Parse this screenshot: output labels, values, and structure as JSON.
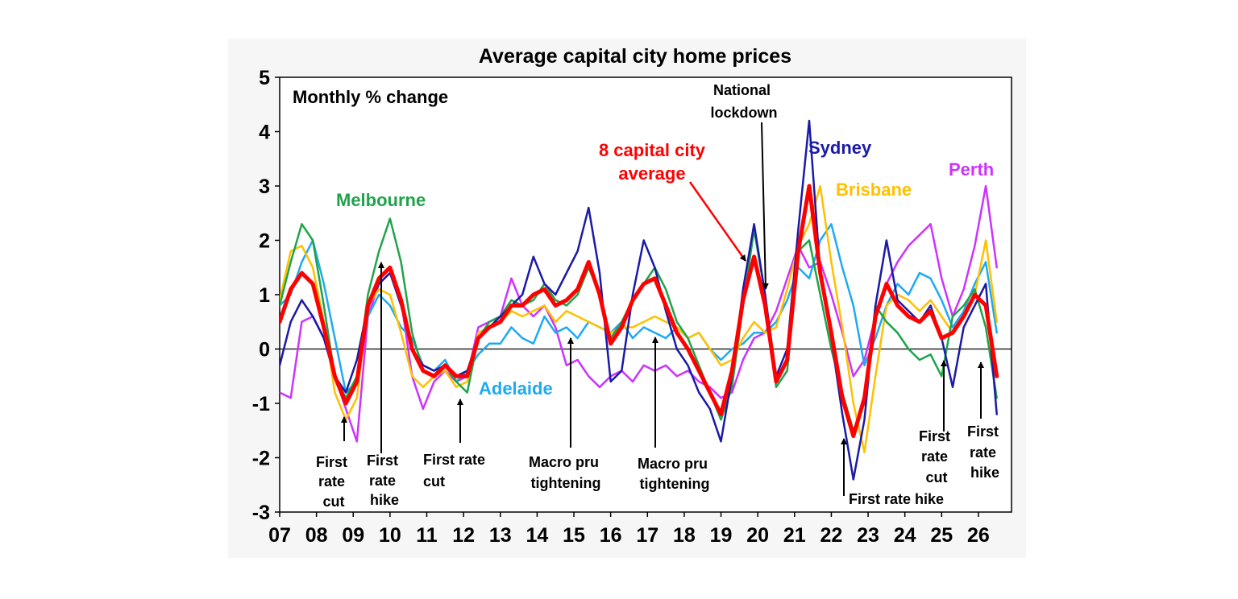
{
  "chart_data": {
    "type": "line",
    "title": "Average capital city home prices",
    "subtitle": "Monthly % change",
    "xlabel": "",
    "ylabel": "",
    "ylim": [
      -3,
      5
    ],
    "xlim": [
      2007.0,
      2026.9
    ],
    "yticks": [
      "5",
      "4",
      "3",
      "2",
      "1",
      "0",
      "-1",
      "-2",
      "-3"
    ],
    "xticks": [
      "07",
      "08",
      "09",
      "10",
      "11",
      "12",
      "13",
      "14",
      "15",
      "16",
      "17",
      "18",
      "19",
      "20",
      "21",
      "22",
      "23",
      "24",
      "25",
      "26"
    ],
    "grid": false,
    "series": [
      {
        "name": "Perth",
        "color": "#cc33ff",
        "width": 2.5,
        "x": [
          2007.0,
          2007.3,
          2007.6,
          2007.9,
          2008.2,
          2008.5,
          2008.8,
          2009.1,
          2009.4,
          2009.7,
          2010.0,
          2010.3,
          2010.6,
          2010.9,
          2011.2,
          2011.5,
          2011.8,
          2012.1,
          2012.4,
          2012.7,
          2013.0,
          2013.3,
          2013.6,
          2013.9,
          2014.2,
          2014.5,
          2014.8,
          2015.1,
          2015.4,
          2015.7,
          2016.0,
          2016.3,
          2016.6,
          2016.9,
          2017.2,
          2017.5,
          2017.8,
          2018.1,
          2018.4,
          2018.7,
          2019.0,
          2019.3,
          2019.6,
          2019.9,
          2020.2,
          2020.5,
          2020.8,
          2021.1,
          2021.4,
          2021.7,
          2022.0,
          2022.3,
          2022.6,
          2022.9,
          2023.2,
          2023.5,
          2023.8,
          2024.1,
          2024.4,
          2024.7,
          2025.0,
          2025.3,
          2025.6,
          2025.9,
          2026.2,
          2026.5
        ],
        "y": [
          -0.8,
          -0.9,
          0.5,
          0.6,
          0.2,
          -0.5,
          -1.1,
          -1.7,
          0.6,
          1.2,
          1.4,
          0.9,
          -0.5,
          -1.1,
          -0.6,
          -0.4,
          -0.6,
          -0.5,
          0.4,
          0.5,
          0.6,
          1.3,
          0.8,
          0.6,
          0.8,
          0.4,
          -0.3,
          -0.2,
          -0.5,
          -0.7,
          -0.5,
          -0.4,
          -0.6,
          -0.3,
          -0.4,
          -0.3,
          -0.5,
          -0.4,
          -0.6,
          -0.7,
          -0.9,
          -0.8,
          -0.2,
          0.2,
          0.3,
          0.7,
          1.3,
          1.9,
          1.5,
          1.6,
          1.0,
          0.3,
          -0.5,
          -0.2,
          0.6,
          1.2,
          1.6,
          1.9,
          2.1,
          2.3,
          1.3,
          0.6,
          1.1,
          1.9,
          3.0,
          1.5
        ]
      },
      {
        "name": "Adelaide",
        "color": "#1eaaf1",
        "width": 2.5,
        "x": [
          2007.0,
          2007.3,
          2007.6,
          2007.9,
          2008.2,
          2008.5,
          2008.8,
          2009.1,
          2009.4,
          2009.7,
          2010.0,
          2010.3,
          2010.6,
          2010.9,
          2011.2,
          2011.5,
          2011.8,
          2012.1,
          2012.4,
          2012.7,
          2013.0,
          2013.3,
          2013.6,
          2013.9,
          2014.2,
          2014.5,
          2014.8,
          2015.1,
          2015.4,
          2015.7,
          2016.0,
          2016.3,
          2016.6,
          2016.9,
          2017.2,
          2017.5,
          2017.8,
          2018.1,
          2018.4,
          2018.7,
          2019.0,
          2019.3,
          2019.6,
          2019.9,
          2020.2,
          2020.5,
          2020.8,
          2021.1,
          2021.4,
          2021.7,
          2022.0,
          2022.3,
          2022.6,
          2022.9,
          2023.2,
          2023.5,
          2023.8,
          2024.1,
          2024.4,
          2024.7,
          2025.0,
          2025.3,
          2025.6,
          2025.9,
          2026.2,
          2026.5
        ],
        "y": [
          0.8,
          1.0,
          1.6,
          2.0,
          1.2,
          0.2,
          -0.8,
          -0.6,
          0.6,
          1.0,
          0.8,
          0.4,
          0.2,
          -0.3,
          -0.4,
          -0.2,
          -0.6,
          -0.4,
          -0.1,
          0.1,
          0.1,
          0.4,
          0.2,
          0.1,
          0.6,
          0.3,
          0.4,
          0.2,
          0.5,
          0.4,
          0.3,
          0.5,
          0.2,
          0.4,
          0.3,
          0.2,
          0.4,
          0.2,
          0.3,
          0.0,
          -0.2,
          0.0,
          0.1,
          0.3,
          0.3,
          0.5,
          0.9,
          1.5,
          1.3,
          2.0,
          2.3,
          1.5,
          0.8,
          -0.3,
          0.2,
          0.8,
          1.2,
          1.0,
          1.4,
          1.3,
          0.9,
          0.4,
          0.7,
          1.2,
          1.6,
          0.3
        ]
      },
      {
        "name": "Brisbane",
        "color": "#ffc000",
        "width": 2.5,
        "x": [
          2007.0,
          2007.3,
          2007.6,
          2007.9,
          2008.2,
          2008.5,
          2008.8,
          2009.1,
          2009.4,
          2009.7,
          2010.0,
          2010.3,
          2010.6,
          2010.9,
          2011.2,
          2011.5,
          2011.8,
          2012.1,
          2012.4,
          2012.7,
          2013.0,
          2013.3,
          2013.6,
          2013.9,
          2014.2,
          2014.5,
          2014.8,
          2015.1,
          2015.4,
          2015.7,
          2016.0,
          2016.3,
          2016.6,
          2016.9,
          2017.2,
          2017.5,
          2017.8,
          2018.1,
          2018.4,
          2018.7,
          2019.0,
          2019.3,
          2019.6,
          2019.9,
          2020.2,
          2020.5,
          2020.8,
          2021.1,
          2021.4,
          2021.7,
          2022.0,
          2022.3,
          2022.6,
          2022.9,
          2023.2,
          2023.5,
          2023.8,
          2024.1,
          2024.4,
          2024.7,
          2025.0,
          2025.3,
          2025.6,
          2025.9,
          2026.2,
          2026.5
        ],
        "y": [
          0.9,
          1.8,
          1.9,
          1.5,
          0.5,
          -0.8,
          -1.3,
          -0.9,
          0.8,
          1.1,
          1.0,
          0.3,
          -0.5,
          -0.7,
          -0.5,
          -0.4,
          -0.7,
          -0.6,
          0.3,
          0.4,
          0.5,
          0.7,
          0.6,
          0.7,
          0.8,
          0.5,
          0.7,
          0.6,
          0.5,
          0.4,
          0.3,
          0.4,
          0.4,
          0.5,
          0.6,
          0.5,
          0.4,
          0.2,
          0.3,
          0.0,
          -0.3,
          -0.2,
          0.2,
          0.5,
          0.3,
          0.4,
          1.1,
          1.9,
          2.3,
          3.0,
          1.6,
          0.4,
          -1.0,
          -1.9,
          -0.5,
          0.8,
          1.0,
          0.9,
          0.7,
          0.9,
          0.6,
          0.3,
          0.6,
          1.0,
          2.0,
          0.5
        ]
      },
      {
        "name": "Melbourne",
        "color": "#1fa34a",
        "width": 2.5,
        "x": [
          2007.0,
          2007.3,
          2007.6,
          2007.9,
          2008.2,
          2008.5,
          2008.8,
          2009.1,
          2009.4,
          2009.7,
          2010.0,
          2010.3,
          2010.6,
          2010.9,
          2011.2,
          2011.5,
          2011.8,
          2012.1,
          2012.4,
          2012.7,
          2013.0,
          2013.3,
          2013.6,
          2013.9,
          2014.2,
          2014.5,
          2014.8,
          2015.1,
          2015.4,
          2015.7,
          2016.0,
          2016.3,
          2016.6,
          2016.9,
          2017.2,
          2017.5,
          2017.8,
          2018.1,
          2018.4,
          2018.7,
          2019.0,
          2019.3,
          2019.6,
          2019.9,
          2020.2,
          2020.5,
          2020.8,
          2021.1,
          2021.4,
          2021.7,
          2022.0,
          2022.3,
          2022.6,
          2022.9,
          2023.2,
          2023.5,
          2023.8,
          2024.1,
          2024.4,
          2024.7,
          2025.0,
          2025.3,
          2025.6,
          2025.9,
          2026.2,
          2026.5
        ],
        "y": [
          0.8,
          1.6,
          2.3,
          2.0,
          0.8,
          -0.5,
          -0.9,
          -0.5,
          1.0,
          1.8,
          2.4,
          1.6,
          0.3,
          -0.4,
          -0.5,
          -0.3,
          -0.6,
          -0.8,
          0.2,
          0.5,
          0.6,
          0.9,
          0.8,
          0.9,
          1.2,
          0.9,
          0.8,
          1.0,
          1.5,
          1.0,
          0.2,
          0.5,
          0.9,
          1.2,
          1.5,
          1.1,
          0.5,
          0.2,
          -0.3,
          -0.8,
          -1.3,
          -0.7,
          0.8,
          2.2,
          1.0,
          -0.7,
          -0.4,
          1.8,
          2.0,
          1.0,
          0.0,
          -0.8,
          -1.5,
          -1.0,
          0.8,
          0.5,
          0.3,
          0.0,
          -0.2,
          -0.1,
          -0.5,
          0.6,
          0.8,
          1.1,
          0.4,
          -0.9
        ]
      },
      {
        "name": "Sydney",
        "color": "#1a1aa8",
        "width": 2.5,
        "x": [
          2007.0,
          2007.3,
          2007.6,
          2007.9,
          2008.2,
          2008.5,
          2008.8,
          2009.1,
          2009.4,
          2009.7,
          2010.0,
          2010.3,
          2010.6,
          2010.9,
          2011.2,
          2011.5,
          2011.8,
          2012.1,
          2012.4,
          2012.7,
          2013.0,
          2013.3,
          2013.6,
          2013.9,
          2014.2,
          2014.5,
          2014.8,
          2015.1,
          2015.4,
          2015.7,
          2016.0,
          2016.3,
          2016.6,
          2016.9,
          2017.2,
          2017.5,
          2017.8,
          2018.1,
          2018.4,
          2018.7,
          2019.0,
          2019.3,
          2019.6,
          2019.9,
          2020.2,
          2020.5,
          2020.8,
          2021.1,
          2021.4,
          2021.7,
          2022.0,
          2022.3,
          2022.6,
          2022.9,
          2023.2,
          2023.5,
          2023.8,
          2024.1,
          2024.4,
          2024.7,
          2025.0,
          2025.3,
          2025.6,
          2025.9,
          2026.2,
          2026.5
        ],
        "y": [
          -0.3,
          0.5,
          0.9,
          0.6,
          0.2,
          -0.5,
          -0.8,
          -0.2,
          0.8,
          1.2,
          1.4,
          0.8,
          0.0,
          -0.3,
          -0.4,
          -0.3,
          -0.5,
          -0.4,
          0.2,
          0.4,
          0.6,
          0.8,
          1.0,
          1.7,
          1.2,
          1.0,
          1.4,
          1.8,
          2.6,
          1.4,
          -0.6,
          -0.4,
          1.0,
          2.0,
          1.5,
          0.7,
          0.0,
          -0.3,
          -0.8,
          -1.1,
          -1.7,
          -0.5,
          1.1,
          2.3,
          1.0,
          -0.5,
          0.0,
          2.2,
          4.2,
          1.4,
          0.2,
          -1.2,
          -2.4,
          -1.3,
          0.8,
          2.0,
          0.9,
          0.7,
          0.5,
          0.8,
          0.2,
          -0.7,
          0.4,
          0.8,
          1.2,
          -1.2
        ]
      },
      {
        "name": "8 capital city average",
        "color": "#ff0000",
        "width": 5,
        "x": [
          2007.0,
          2007.3,
          2007.6,
          2007.9,
          2008.2,
          2008.5,
          2008.8,
          2009.1,
          2009.4,
          2009.7,
          2010.0,
          2010.3,
          2010.6,
          2010.9,
          2011.2,
          2011.5,
          2011.8,
          2012.1,
          2012.4,
          2012.7,
          2013.0,
          2013.3,
          2013.6,
          2013.9,
          2014.2,
          2014.5,
          2014.8,
          2015.1,
          2015.4,
          2015.7,
          2016.0,
          2016.3,
          2016.6,
          2016.9,
          2017.2,
          2017.5,
          2017.8,
          2018.1,
          2018.4,
          2018.7,
          2019.0,
          2019.3,
          2019.6,
          2019.9,
          2020.2,
          2020.5,
          2020.8,
          2021.1,
          2021.4,
          2021.7,
          2022.0,
          2022.3,
          2022.6,
          2022.9,
          2023.2,
          2023.5,
          2023.8,
          2024.1,
          2024.4,
          2024.7,
          2025.0,
          2025.3,
          2025.6,
          2025.9,
          2026.2,
          2026.5
        ],
        "y": [
          0.5,
          1.1,
          1.4,
          1.2,
          0.4,
          -0.5,
          -1.0,
          -0.6,
          0.8,
          1.3,
          1.5,
          0.9,
          0.0,
          -0.4,
          -0.5,
          -0.3,
          -0.5,
          -0.5,
          0.2,
          0.4,
          0.5,
          0.8,
          0.8,
          1.0,
          1.1,
          0.8,
          0.9,
          1.1,
          1.6,
          1.0,
          0.1,
          0.4,
          0.9,
          1.2,
          1.3,
          0.8,
          0.3,
          0.0,
          -0.4,
          -0.8,
          -1.2,
          -0.4,
          0.9,
          1.7,
          0.8,
          -0.6,
          -0.2,
          1.8,
          3.0,
          1.4,
          0.3,
          -0.9,
          -1.6,
          -0.9,
          0.6,
          1.2,
          0.8,
          0.6,
          0.5,
          0.7,
          0.2,
          0.3,
          0.6,
          1.0,
          0.8,
          -0.5
        ]
      }
    ],
    "labels": {
      "melbourne": "Melbourne",
      "adelaide": "Adelaide",
      "average_line1": "8 capital city",
      "average_line2": "average",
      "sydney": "Sydney",
      "brisbane": "Brisbane",
      "perth": "Perth"
    },
    "annotations": {
      "first_rate_cut_08": [
        "First",
        "rate",
        "cut"
      ],
      "first_rate_hike_09": [
        "First",
        "rate",
        "hike"
      ],
      "first_rate_cut_11": [
        "First rate",
        "cut"
      ],
      "macro_pru_14": [
        "Macro pru",
        "tightening"
      ],
      "macro_pru_17": [
        "Macro pru",
        "tightening"
      ],
      "national_lockdown": [
        "National",
        "lockdown"
      ],
      "first_rate_hike_22": [
        "First rate hike"
      ],
      "first_rate_cut_25": [
        "First",
        "rate",
        "cut"
      ],
      "first_rate_hike_26": [
        "First",
        "rate",
        "hike"
      ]
    }
  }
}
